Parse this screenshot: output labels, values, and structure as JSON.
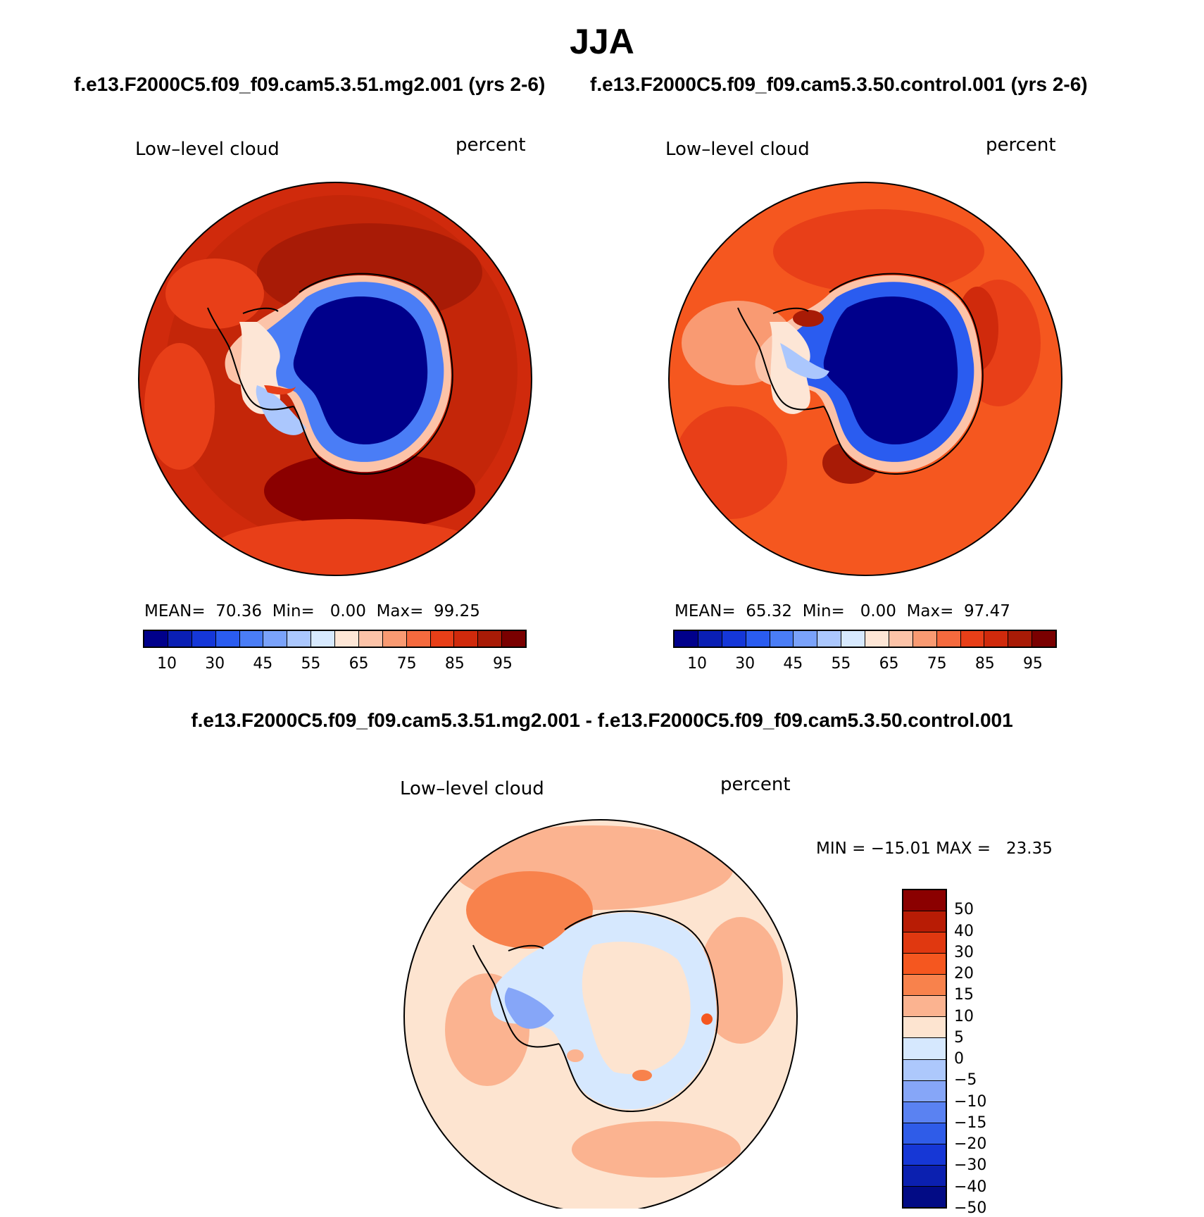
{
  "title": "JJA",
  "panels": [
    {
      "case": "f.e13.F2000C5.f09_f09.cam5.3.51.mg2.001 (yrs 2-6)",
      "variable": "Low–level cloud",
      "units": "percent",
      "stats": {
        "mean_label": "MEAN=",
        "mean": "70.36",
        "min_label": "Min=",
        "min": "0.00",
        "max_label": "Max=",
        "max": "99.25"
      }
    },
    {
      "case": "f.e13.F2000C5.f09_f09.cam5.3.50.control.001 (yrs 2-6)",
      "variable": "Low–level cloud",
      "units": "percent",
      "stats": {
        "mean_label": "MEAN=",
        "mean": "65.32",
        "min_label": "Min=",
        "min": "0.00",
        "max_label": "Max=",
        "max": "97.47"
      }
    }
  ],
  "abs_colorbar": {
    "colors": [
      "#00008b",
      "#0a1fb4",
      "#1537d8",
      "#2a5cf0",
      "#4a7df6",
      "#7aa2fa",
      "#abc7fd",
      "#d7e9fe",
      "#fde6d6",
      "#fcc3a8",
      "#f99a72",
      "#f56a3e",
      "#e83f18",
      "#d02a0c",
      "#a81b06",
      "#7a0000"
    ],
    "ticks": [
      "10",
      "30",
      "45",
      "55",
      "65",
      "75",
      "85",
      "95"
    ]
  },
  "diff": {
    "title": "f.e13.F2000C5.f09_f09.cam5.3.51.mg2.001 - f.e13.F2000C5.f09_f09.cam5.3.50.control.001",
    "variable": "Low–level cloud",
    "units": "percent",
    "minmax": "MIN = −15.01 MAX =   23.35",
    "colorbar": {
      "colors": [
        "#8b0000",
        "#b81c05",
        "#e03810",
        "#f5571f",
        "#f8824c",
        "#fbb390",
        "#fde4d0",
        "#d6e8fe",
        "#adc8fc",
        "#86a6f8",
        "#5a82f2",
        "#2f5ce8",
        "#1637d6",
        "#0b20b0",
        "#020b85"
      ],
      "ticks": [
        "50",
        "40",
        "30",
        "20",
        "15",
        "10",
        "5",
        "0",
        "−5",
        "−10",
        "−15",
        "−20",
        "−30",
        "−40",
        "−50"
      ]
    }
  }
}
